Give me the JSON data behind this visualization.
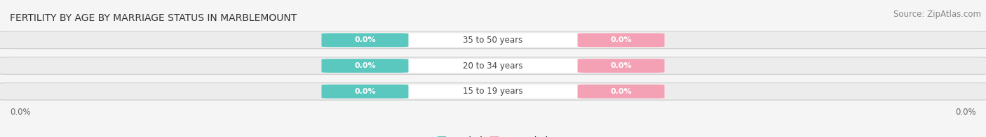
{
  "title": "FERTILITY BY AGE BY MARRIAGE STATUS IN MARBLEMOUNT",
  "source": "Source: ZipAtlas.com",
  "categories": [
    "15 to 19 years",
    "20 to 34 years",
    "35 to 50 years"
  ],
  "married_values": [
    "0.0%",
    "0.0%",
    "0.0%"
  ],
  "unmarried_values": [
    "0.0%",
    "0.0%",
    "0.0%"
  ],
  "married_color": "#5bc8c0",
  "unmarried_color": "#f4a0b5",
  "bar_bg_color_light": "#efefef",
  "bar_bg_color_dark": "#e0e0e0",
  "center_label_bg": "#ffffff",
  "title_fontsize": 10,
  "source_fontsize": 8.5,
  "axis_label_fontsize": 8.5,
  "badge_fontsize": 8,
  "cat_fontsize": 8.5,
  "legend_fontsize": 9,
  "left_label": "0.0%",
  "right_label": "0.0%",
  "background_color": "#f5f5f5"
}
